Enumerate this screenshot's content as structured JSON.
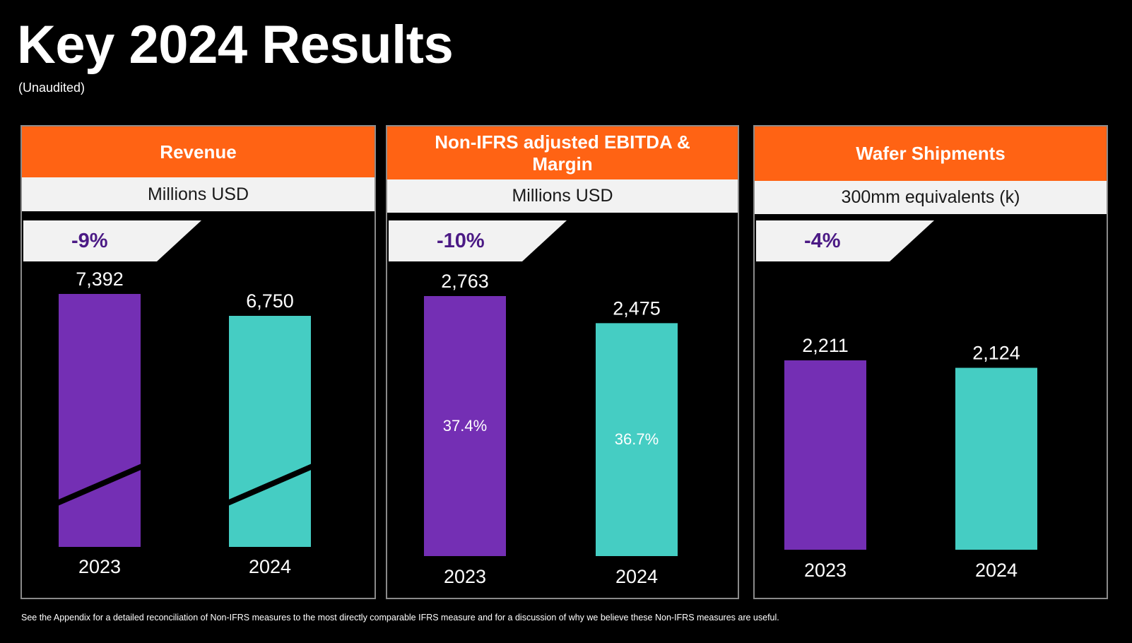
{
  "page": {
    "title": "Key 2024 Results",
    "subtitle": "(Unaudited)",
    "footnote": "See the Appendix for a detailed reconciliation of Non-IFRS measures to the most directly comparable IFRS measure and for a discussion of why we believe these Non-IFRS measures are useful."
  },
  "colors": {
    "header": "#ff6314",
    "bar_2023": "#742fb4",
    "bar_2024": "#45cdc3",
    "change_text": "#4b1a85"
  },
  "chart_data": [
    {
      "type": "bar",
      "title": "Revenue",
      "unit": "Millions USD",
      "change": "-9%",
      "categories": [
        "2023",
        "2024"
      ],
      "values": [
        7392,
        6750
      ],
      "value_labels": [
        "7,392",
        "6,750"
      ],
      "axis_break": true
    },
    {
      "type": "bar",
      "title": "Non-IFRS adjusted EBITDA & Margin",
      "unit": "Millions USD",
      "change": "-10%",
      "categories": [
        "2023",
        "2024"
      ],
      "values": [
        2763,
        2475
      ],
      "value_labels": [
        "2,763",
        "2,475"
      ],
      "margin_labels": [
        "37.4%",
        "36.7%"
      ]
    },
    {
      "type": "bar",
      "title": "Wafer Shipments",
      "unit": "300mm equivalents (k)",
      "change": "-4%",
      "categories": [
        "2023",
        "2024"
      ],
      "values": [
        2211,
        2124
      ],
      "value_labels": [
        "2,211",
        "2,124"
      ]
    }
  ]
}
